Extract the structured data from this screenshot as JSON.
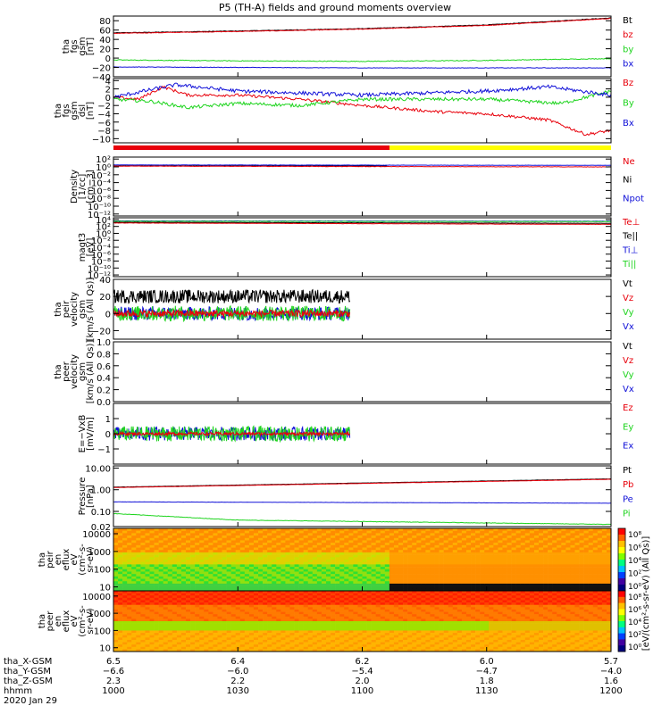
{
  "title": "P5 (TH-A) fields and ground moments overview",
  "colors": {
    "black": "#000000",
    "red": "#e8000b",
    "green": "#1ed41e",
    "blue": "#1010d8",
    "yellow": "#ffff00",
    "white": "#ffffff"
  },
  "chart_data": [
    {
      "id": "fgs-mag",
      "type": "line",
      "ylabel_lines": [
        "tha",
        "fgs",
        "gsm",
        "[nT]"
      ],
      "ylim": [
        -40,
        90
      ],
      "y_ticks": [
        {
          "v": 80,
          "t": "80"
        },
        {
          "v": 60,
          "t": "60"
        },
        {
          "v": 40,
          "t": "40"
        },
        {
          "v": 20,
          "t": "20"
        },
        {
          "v": 0,
          "t": "0"
        },
        {
          "v": -20,
          "t": "−20"
        },
        {
          "v": -40,
          "t": "−40"
        }
      ],
      "legend": [
        {
          "name": "Bt",
          "color": "black"
        },
        {
          "name": "bz",
          "color": "red"
        },
        {
          "name": "by",
          "color": "green"
        },
        {
          "name": "bx",
          "color": "blue"
        }
      ],
      "series": [
        {
          "name": "Bt",
          "color": "black",
          "x": [
            10.0,
            10.5,
            11.0,
            11.5,
            12.0
          ],
          "y": [
            54,
            58,
            63,
            71,
            86
          ],
          "noise": 0.6
        },
        {
          "name": "bz",
          "color": "red",
          "x": [
            10.0,
            10.5,
            11.0,
            11.5,
            12.0
          ],
          "y": [
            53,
            57,
            62,
            70,
            85
          ],
          "noise": 0.6
        },
        {
          "name": "by",
          "color": "green",
          "x": [
            10.0,
            10.5,
            11.0,
            11.5,
            12.0
          ],
          "y": [
            -4,
            -6,
            -7,
            -5,
            -1
          ],
          "noise": 0.8
        },
        {
          "name": "bx",
          "color": "blue",
          "x": [
            10.0,
            10.5,
            11.0,
            11.5,
            12.0
          ],
          "y": [
            -19,
            -20,
            -21,
            -21,
            -21
          ],
          "noise": 0.5
        }
      ]
    },
    {
      "id": "fgs-dsl",
      "type": "line",
      "ylabel_lines": [
        "tha",
        "fgs",
        "gsm",
        "dsl",
        "[nT]"
      ],
      "ylim": [
        -11,
        4.5
      ],
      "y_ticks": [
        {
          "v": 4,
          "t": "4"
        },
        {
          "v": 2,
          "t": "2"
        },
        {
          "v": 0,
          "t": "0"
        },
        {
          "v": -2,
          "t": "−2"
        },
        {
          "v": -4,
          "t": "−4"
        },
        {
          "v": -6,
          "t": "−6"
        },
        {
          "v": -8,
          "t": "−8"
        },
        {
          "v": -10,
          "t": "−10"
        }
      ],
      "legend": [
        {
          "name": "Bz",
          "color": "red"
        },
        {
          "name": "By",
          "color": "green"
        },
        {
          "name": "Bx",
          "color": "blue"
        }
      ],
      "series": [
        {
          "name": "Bz",
          "color": "red",
          "x": [
            10.0,
            10.1,
            10.2,
            10.3,
            10.5,
            10.75,
            11.0,
            11.3,
            11.5,
            11.75,
            11.9,
            12.0
          ],
          "y": [
            0,
            -0.5,
            2.5,
            0.5,
            0.5,
            -0.5,
            -2,
            -3.5,
            -4,
            -5.5,
            -9,
            -8
          ],
          "noise": 0.35
        },
        {
          "name": "By",
          "color": "green",
          "x": [
            10.0,
            10.15,
            10.3,
            10.5,
            10.75,
            11.0,
            11.5,
            11.8,
            12.0
          ],
          "y": [
            -0.5,
            -1,
            -2.5,
            -1.5,
            -2,
            -0.5,
            -0.5,
            -1.5,
            1.5
          ],
          "noise": 0.4
        },
        {
          "name": "Bx",
          "color": "blue",
          "x": [
            10.0,
            10.25,
            10.5,
            11.0,
            11.5,
            11.75,
            12.0
          ],
          "y": [
            0,
            3,
            1.5,
            0.5,
            1.5,
            2.5,
            0.5
          ],
          "noise": 0.45
        }
      ]
    },
    {
      "id": "density",
      "type": "line",
      "ylabel_lines": [
        "Density",
        "[1/cc]",
        "[cm−3]"
      ],
      "ylim": [
        -12.5,
        2.5
      ],
      "log": true,
      "y_ticks": [
        {
          "v": 2,
          "t": "10²"
        },
        {
          "v": 0,
          "t": "10⁰"
        },
        {
          "v": -2,
          "t": "10⁻²"
        },
        {
          "v": -4,
          "t": "10⁻⁴"
        },
        {
          "v": -6,
          "t": "10⁻⁶"
        },
        {
          "v": -8,
          "t": "10⁻⁸"
        },
        {
          "v": -10,
          "t": "10⁻¹⁰"
        },
        {
          "v": -12,
          "t": "10⁻¹²"
        }
      ],
      "legend": [
        {
          "name": "Ne",
          "color": "red"
        },
        {
          "name": "Ni",
          "color": "black"
        },
        {
          "name": "Npot",
          "color": "blue"
        }
      ],
      "series": [
        {
          "name": "Ni",
          "color": "black",
          "x": [
            10.0,
            12.0
          ],
          "y": [
            0.3,
            0.2
          ],
          "noise": 0.05,
          "xmax": 11.1
        },
        {
          "name": "Ne",
          "color": "red",
          "x": [
            10.0,
            11.0,
            12.0
          ],
          "y": [
            0.2,
            0.1,
            0.0
          ],
          "noise": 0.05
        },
        {
          "name": "Npot",
          "color": "blue",
          "x": [
            10.0,
            12.0
          ],
          "y": [
            0.5,
            0.4
          ],
          "noise": 0.03
        }
      ]
    },
    {
      "id": "temperature",
      "type": "line",
      "ylabel_lines": [
        "magt3",
        "[eV]"
      ],
      "ylim": [
        -12.5,
        4.5
      ],
      "log": true,
      "y_ticks": [
        {
          "v": 4,
          "t": "10⁴"
        },
        {
          "v": 2,
          "t": "10²"
        },
        {
          "v": 0,
          "t": "10⁰"
        },
        {
          "v": -2,
          "t": "10⁻²"
        },
        {
          "v": -4,
          "t": "10⁻⁴"
        },
        {
          "v": -6,
          "t": "10⁻⁶"
        },
        {
          "v": -8,
          "t": "10⁻⁸"
        },
        {
          "v": -10,
          "t": "10⁻¹⁰"
        },
        {
          "v": -12,
          "t": "10⁻¹²"
        }
      ],
      "legend": [
        {
          "name": "Te⊥",
          "color": "red"
        },
        {
          "name": "Te||",
          "color": "black"
        },
        {
          "name": "Ti⊥",
          "color": "blue"
        },
        {
          "name": "Ti||",
          "color": "green"
        }
      ],
      "series": [
        {
          "name": "Te||",
          "color": "black",
          "x": [
            10.0,
            12.0
          ],
          "y": [
            3.2,
            2.9
          ],
          "noise": 0.04
        },
        {
          "name": "Te⊥",
          "color": "red",
          "x": [
            10.0,
            12.0
          ],
          "y": [
            3.0,
            2.6
          ],
          "noise": 0.04
        },
        {
          "name": "Ti⊥",
          "color": "blue",
          "x": [
            10.0,
            12.0
          ],
          "y": [
            3.6,
            3.5
          ],
          "noise": 0.04
        },
        {
          "name": "Ti||",
          "color": "green",
          "x": [
            10.0,
            12.0
          ],
          "y": [
            3.5,
            3.4
          ],
          "noise": 0.04
        }
      ]
    },
    {
      "id": "peir-velocity",
      "type": "line",
      "ylabel_lines": [
        "tha",
        "peir",
        "velocity",
        "gsm",
        "[km/s (All Qs)]"
      ],
      "ylim": [
        -30,
        40
      ],
      "y_ticks": [
        {
          "v": 40,
          "t": "40"
        },
        {
          "v": 20,
          "t": "20"
        },
        {
          "v": 0,
          "t": "0"
        },
        {
          "v": -20,
          "t": "−20"
        }
      ],
      "legend": [
        {
          "name": "Vt",
          "color": "black"
        },
        {
          "name": "Vz",
          "color": "red"
        },
        {
          "name": "Vy",
          "color": "green"
        },
        {
          "name": "Vx",
          "color": "blue"
        }
      ],
      "series": [
        {
          "name": "Vt",
          "color": "black",
          "x": [
            10.0,
            11.0
          ],
          "y": [
            20,
            20
          ],
          "noise": 8,
          "xmax": 10.95
        },
        {
          "name": "Vx",
          "color": "blue",
          "x": [
            10.0,
            11.0
          ],
          "y": [
            0,
            0
          ],
          "noise": 8,
          "xmax": 10.95
        },
        {
          "name": "Vy",
          "color": "green",
          "x": [
            10.0,
            11.0
          ],
          "y": [
            0,
            0
          ],
          "noise": 9,
          "xmax": 10.95
        },
        {
          "name": "Vz",
          "color": "red",
          "x": [
            10.0,
            11.0
          ],
          "y": [
            0,
            0
          ],
          "noise": 4,
          "xmax": 10.95
        }
      ]
    },
    {
      "id": "peer-velocity",
      "type": "line",
      "ylabel_lines": [
        "tha",
        "peer",
        "velocity",
        "gsm",
        "[km/s (All Qs)]"
      ],
      "ylim": [
        0,
        1
      ],
      "y_ticks": [
        {
          "v": 1.0,
          "t": "1.0"
        },
        {
          "v": 0.8,
          "t": "0.8"
        },
        {
          "v": 0.6,
          "t": "0.6"
        },
        {
          "v": 0.4,
          "t": "0.4"
        },
        {
          "v": 0.2,
          "t": "0.2"
        },
        {
          "v": 0.0,
          "t": "0.0"
        }
      ],
      "legend": [
        {
          "name": "Vt",
          "color": "black"
        },
        {
          "name": "Vz",
          "color": "red"
        },
        {
          "name": "Vy",
          "color": "green"
        },
        {
          "name": "Vx",
          "color": "blue"
        }
      ],
      "series": []
    },
    {
      "id": "efield",
      "type": "line",
      "ylabel_lines": [
        "E=−VxB",
        "[mV/m]"
      ],
      "ylim": [
        -2,
        2
      ],
      "y_ticks": [
        {
          "v": 1,
          "t": "1"
        },
        {
          "v": 0,
          "t": "0"
        },
        {
          "v": -1,
          "t": "−1"
        }
      ],
      "legend": [
        {
          "name": "Ez",
          "color": "red"
        },
        {
          "name": "Ey",
          "color": "green"
        },
        {
          "name": "Ex",
          "color": "blue"
        }
      ],
      "series": [
        {
          "name": "Ex",
          "color": "blue",
          "x": [
            10.0,
            11.0
          ],
          "y": [
            0,
            0
          ],
          "noise": 0.45,
          "xmax": 10.95
        },
        {
          "name": "Ey",
          "color": "green",
          "x": [
            10.0,
            11.0
          ],
          "y": [
            0,
            0
          ],
          "noise": 0.5,
          "xmax": 10.95
        },
        {
          "name": "Ez",
          "color": "red",
          "x": [
            10.0,
            11.0
          ],
          "y": [
            0,
            0
          ],
          "noise": 0.1,
          "xmax": 10.95
        }
      ]
    },
    {
      "id": "pressure",
      "type": "line",
      "ylabel_lines": [
        "Pressure",
        "[nPa]"
      ],
      "ylim": [
        -1.7,
        1.1
      ],
      "log": true,
      "y_ticks": [
        {
          "v": 1,
          "t": "10.00"
        },
        {
          "v": 0,
          "t": "1.00"
        },
        {
          "v": -1,
          "t": "0.10"
        },
        {
          "v": -1.699,
          "t": "0.02"
        }
      ],
      "legend": [
        {
          "name": "Pt",
          "color": "black"
        },
        {
          "name": "Pb",
          "color": "red"
        },
        {
          "name": "Pe",
          "color": "blue"
        },
        {
          "name": "Pi",
          "color": "green"
        }
      ],
      "series": [
        {
          "name": "Pt",
          "color": "black",
          "x": [
            10.0,
            12.0
          ],
          "y": [
            0.12,
            0.5
          ],
          "noise": 0.005
        },
        {
          "name": "Pb",
          "color": "red",
          "x": [
            10.0,
            12.0
          ],
          "y": [
            0.1,
            0.48
          ],
          "noise": 0.005
        },
        {
          "name": "Pe",
          "color": "blue",
          "x": [
            10.0,
            12.0
          ],
          "y": [
            -0.56,
            -0.62
          ],
          "noise": 0.005
        },
        {
          "name": "Pi",
          "color": "green",
          "x": [
            10.0,
            10.5,
            12.0
          ],
          "y": [
            -1.1,
            -1.4,
            -1.6
          ],
          "noise": 0.01
        }
      ]
    },
    {
      "id": "peir-eflux",
      "type": "heatmap",
      "ylabel_lines": [
        "tha",
        "peir",
        "en",
        "eflux",
        "eV",
        "(cm²-s-",
        "sr-eV)"
      ],
      "y_ticks": [
        {
          "v": 10000,
          "t": "10000"
        },
        {
          "v": 1000,
          "t": "1000"
        },
        {
          "v": 100,
          "t": "100"
        },
        {
          "v": 10,
          "t": "10"
        }
      ]
    },
    {
      "id": "peer-eflux",
      "type": "heatmap",
      "ylabel_lines": [
        "tha",
        "peer",
        "en",
        "eflux",
        "eV",
        "(cm²-s-",
        "sr-eV)"
      ],
      "y_ticks": [
        {
          "v": 10000,
          "t": "10000"
        },
        {
          "v": 1000,
          "t": "1000"
        },
        {
          "v": 100,
          "t": "100"
        },
        {
          "v": 10,
          "t": "10"
        }
      ]
    }
  ],
  "colorbar": {
    "label": "[eV/(cm²-s-sr-eV) (All Qs)]",
    "ticks_peir": [
      "10⁸",
      "10⁶",
      "10⁴",
      "10²",
      "10⁰"
    ],
    "ticks_peer": [
      "10⁸",
      "10⁶",
      "10⁴",
      "10²",
      "10⁰"
    ]
  },
  "x_axis": {
    "rows": [
      {
        "label": "tha_X-GSM",
        "values": [
          "6.5",
          "6.4",
          "6.2",
          "6.0",
          "5.7"
        ]
      },
      {
        "label": "tha_Y-GSM",
        "values": [
          "−6.6",
          "−6.0",
          "−5.4",
          "−4.7",
          "−4.0"
        ]
      },
      {
        "label": "tha_Z-GSM",
        "values": [
          "2.3",
          "2.2",
          "2.0",
          "1.8",
          "1.6"
        ]
      },
      {
        "label": "hhmm",
        "values": [
          "1000",
          "1030",
          "1100",
          "1130",
          "1200"
        ]
      }
    ],
    "date": "2020 Jan 29",
    "tick_hours": [
      10.0,
      10.5,
      11.0,
      11.5,
      12.0
    ],
    "range": [
      10.0,
      12.0
    ]
  },
  "mode_bar": {
    "segments": [
      {
        "from": 10.0,
        "to": 11.11,
        "color": "red"
      },
      {
        "from": 11.11,
        "to": 12.0,
        "color": "yellow"
      }
    ]
  }
}
